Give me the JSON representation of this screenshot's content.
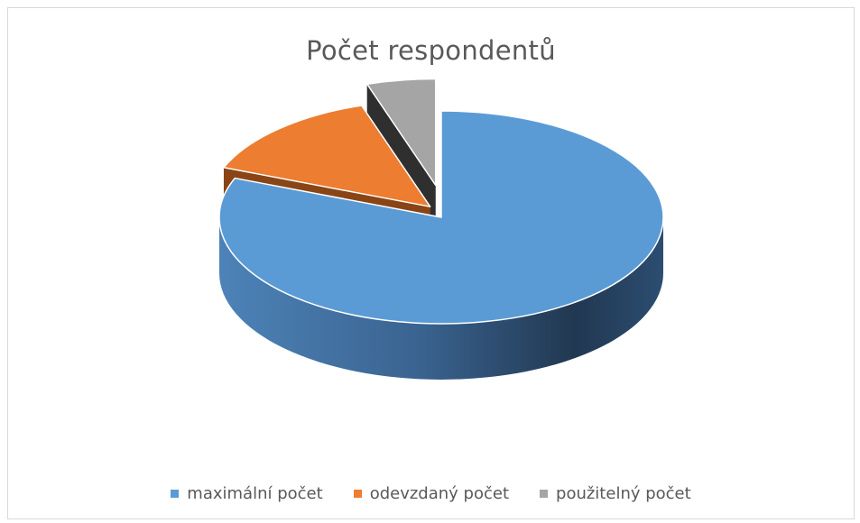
{
  "chart_data": {
    "type": "pie",
    "title": "Počet respondentů",
    "style": "3d-exploded",
    "legend_position": "bottom",
    "slices": [
      {
        "name": "maximální počet",
        "value": 81,
        "color": "#5b9bd5"
      },
      {
        "name": "odevzdaný počet",
        "value": 14,
        "color": "#ed7d31"
      },
      {
        "name": "použitelný počet",
        "value": 5,
        "color": "#a5a5a5"
      }
    ]
  }
}
